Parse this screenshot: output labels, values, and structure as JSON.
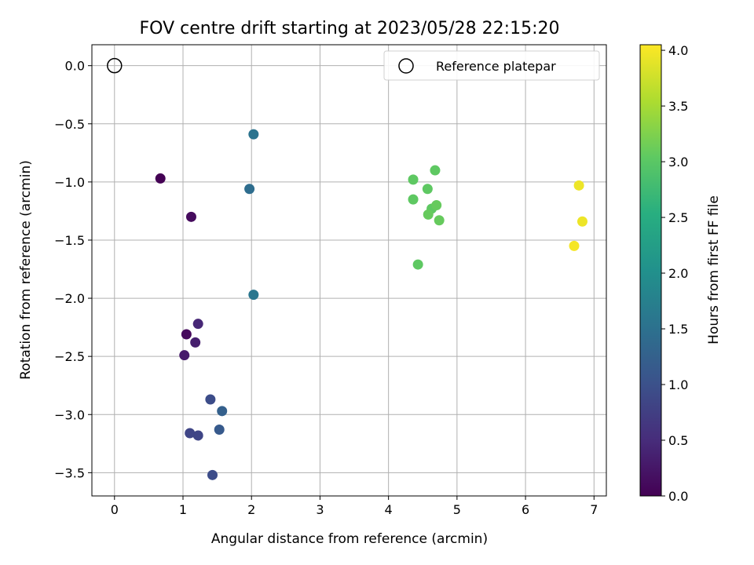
{
  "chart_data": {
    "type": "scatter",
    "title": "FOV centre drift starting at 2023/05/28 22:15:20",
    "xlabel": "Angular distance from reference (arcmin)",
    "ylabel": "Rotation from reference (arcmin)",
    "xlim": [
      -0.33,
      7.18
    ],
    "ylim": [
      -3.7,
      0.18
    ],
    "x_ticks": [
      0,
      1,
      2,
      3,
      4,
      5,
      6,
      7
    ],
    "y_ticks": [
      0.0,
      -0.5,
      -1.0,
      -1.5,
      -2.0,
      -2.5,
      -3.0,
      -3.5
    ],
    "grid": true,
    "legend": {
      "location": "top-right",
      "entries": [
        "Reference platepar"
      ]
    },
    "reference_point": {
      "x": 0,
      "y": 0
    },
    "colorbar": {
      "label": "Hours from first FF file",
      "range": [
        0.0,
        4.05
      ],
      "ticks": [
        0.0,
        0.5,
        1.0,
        1.5,
        2.0,
        2.5,
        3.0,
        3.5,
        4.0
      ],
      "colormap": "viridis"
    },
    "points": [
      {
        "x": 0.67,
        "y": -0.97,
        "c": 0.0
      },
      {
        "x": 1.12,
        "y": -1.3,
        "c": 0.12
      },
      {
        "x": 1.05,
        "y": -2.31,
        "c": 0.1
      },
      {
        "x": 1.02,
        "y": -2.49,
        "c": 0.3
      },
      {
        "x": 1.18,
        "y": -2.38,
        "c": 0.35
      },
      {
        "x": 1.22,
        "y": -2.22,
        "c": 0.45
      },
      {
        "x": 1.1,
        "y": -3.16,
        "c": 0.85
      },
      {
        "x": 1.22,
        "y": -3.18,
        "c": 0.85
      },
      {
        "x": 1.4,
        "y": -2.87,
        "c": 0.95
      },
      {
        "x": 1.43,
        "y": -3.52,
        "c": 0.95
      },
      {
        "x": 1.53,
        "y": -3.13,
        "c": 1.15
      },
      {
        "x": 1.57,
        "y": -2.97,
        "c": 1.25
      },
      {
        "x": 1.97,
        "y": -1.06,
        "c": 1.45
      },
      {
        "x": 2.03,
        "y": -0.59,
        "c": 1.55
      },
      {
        "x": 2.03,
        "y": -1.97,
        "c": 1.6
      },
      {
        "x": 4.36,
        "y": -0.98,
        "c": 3.05
      },
      {
        "x": 4.68,
        "y": -0.9,
        "c": 3.05
      },
      {
        "x": 4.36,
        "y": -1.15,
        "c": 3.05
      },
      {
        "x": 4.57,
        "y": -1.06,
        "c": 3.05
      },
      {
        "x": 4.63,
        "y": -1.23,
        "c": 3.05
      },
      {
        "x": 4.7,
        "y": -1.2,
        "c": 3.1
      },
      {
        "x": 4.58,
        "y": -1.28,
        "c": 3.1
      },
      {
        "x": 4.74,
        "y": -1.33,
        "c": 3.1
      },
      {
        "x": 4.43,
        "y": -1.71,
        "c": 3.05
      },
      {
        "x": 6.78,
        "y": -1.03,
        "c": 3.95
      },
      {
        "x": 6.83,
        "y": -1.34,
        "c": 3.95
      },
      {
        "x": 6.71,
        "y": -1.55,
        "c": 4.0
      }
    ]
  }
}
